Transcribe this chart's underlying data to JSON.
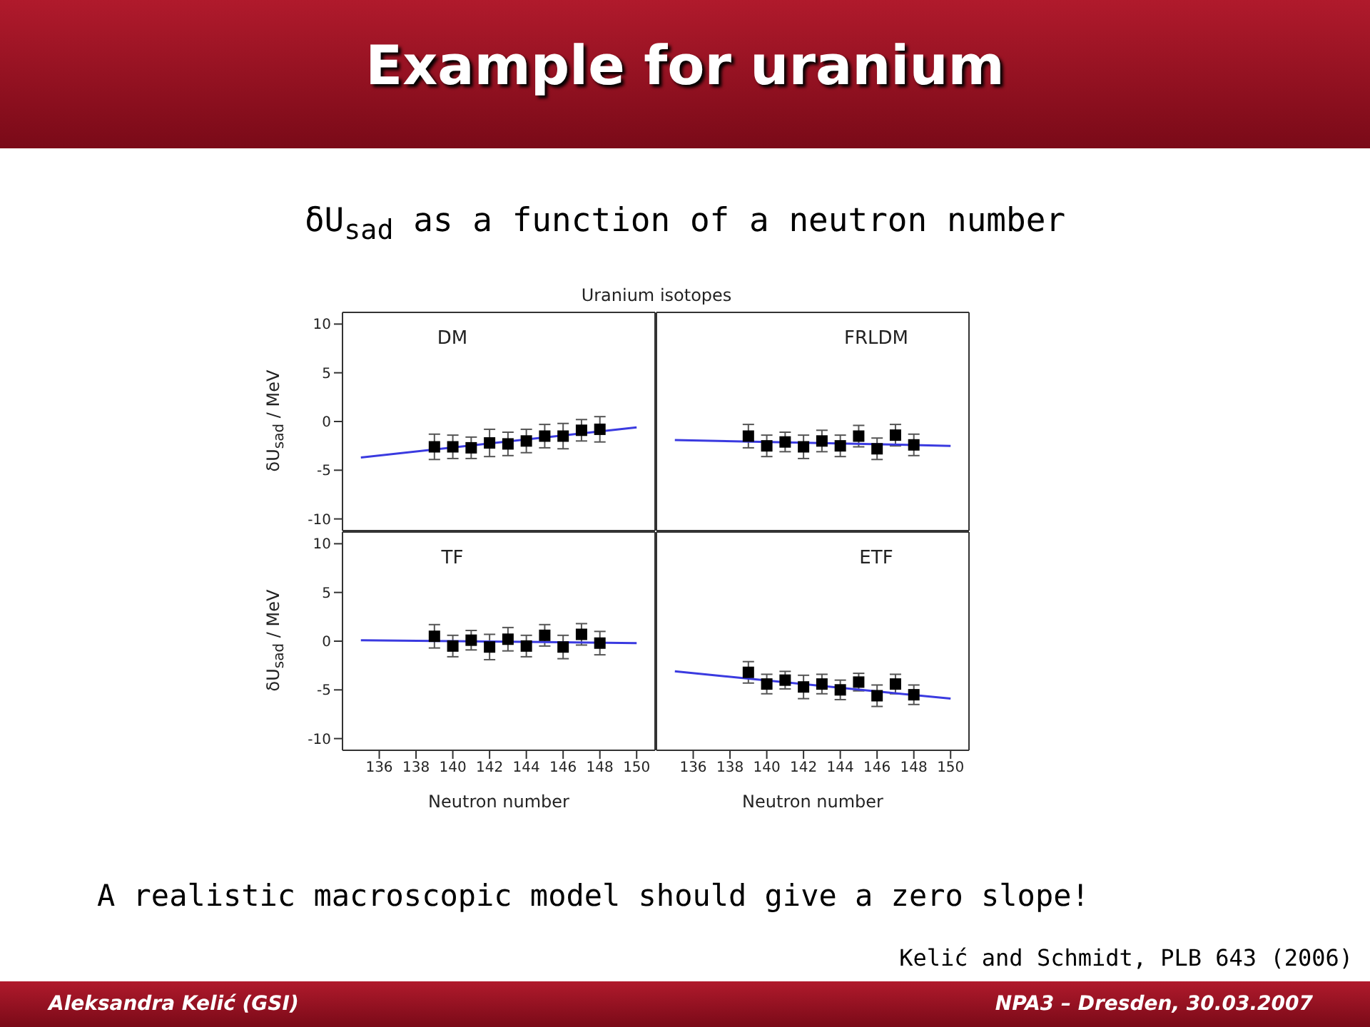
{
  "chart_data": [
    {
      "type": "scatter",
      "title": "Example for uranium",
      "subtitle": "δU$_{sad}$ as a function of a neutron number",
      "ylabel": "δU$_{sad}$ / MeV",
      "annotations": [
        "DM",
        "Uranium isotopes",
        "A realistic macroscopic model should give a zero slope!",
        "Kelić and Schmidt, PLB 643 (2006)",
        "Aleksandra Kelić (GSI)",
        "NPA3 – Dresden, 30.03.2007"
      ],
      "xlim": [
        134,
        151
      ],
      "xticks": [
        136,
        138,
        140,
        142,
        144,
        146,
        148,
        150
      ],
      "ylim": [
        -11.2,
        11.2
      ],
      "yticks": [
        -10,
        -5,
        0,
        5,
        10
      ],
      "tick_labels": "y",
      "series": [
        {
          "type": "scatter",
          "color": "#000000",
          "marker": "square",
          "x": [
            139,
            140,
            141,
            142,
            143,
            144,
            145,
            146,
            147,
            148
          ],
          "values": [
            -2.6,
            -2.6,
            -2.7,
            -2.2,
            -2.3,
            -2.0,
            -1.5,
            -1.5,
            -0.9,
            -0.8
          ],
          "errors": [
            1.3,
            1.2,
            1.1,
            1.4,
            1.2,
            1.2,
            1.2,
            1.3,
            1.1,
            1.3
          ]
        },
        {
          "type": "line",
          "color": "#3a3ae0",
          "marker": "none",
          "x": [
            135,
            150
          ],
          "values": [
            -3.7,
            -0.6
          ]
        }
      ]
    },
    {
      "type": "scatter",
      "annotations": [
        "FRLDM"
      ],
      "xlim": [
        134,
        151
      ],
      "xticks": [
        136,
        138,
        140,
        142,
        144,
        146,
        148,
        150
      ],
      "ylim": [
        -11.2,
        11.2
      ],
      "yticks": [
        -10,
        -5,
        0,
        5,
        10
      ],
      "tick_labels": false,
      "series": [
        {
          "type": "scatter",
          "color": "#000000",
          "marker": "square",
          "x": [
            139,
            140,
            141,
            142,
            143,
            144,
            145,
            146,
            147,
            148
          ],
          "values": [
            -1.5,
            -2.5,
            -2.1,
            -2.6,
            -2.0,
            -2.5,
            -1.5,
            -2.8,
            -1.4,
            -2.4
          ],
          "errors": [
            1.2,
            1.1,
            1.0,
            1.2,
            1.1,
            1.1,
            1.1,
            1.1,
            1.1,
            1.1
          ]
        },
        {
          "type": "line",
          "color": "#3a3ae0",
          "marker": "none",
          "x": [
            135,
            150
          ],
          "values": [
            -1.9,
            -2.5
          ]
        }
      ]
    },
    {
      "type": "scatter",
      "xlabel": "Neutron number",
      "ylabel": "δU$_{sad}$ / MeV",
      "annotations": [
        "TF"
      ],
      "xlim": [
        134,
        151
      ],
      "xticks": [
        136,
        138,
        140,
        142,
        144,
        146,
        148,
        150
      ],
      "ylim": [
        -11.2,
        11.2
      ],
      "yticks": [
        -10,
        -5,
        0,
        5,
        10
      ],
      "series": [
        {
          "type": "scatter",
          "color": "#000000",
          "marker": "square",
          "x": [
            139,
            140,
            141,
            142,
            143,
            144,
            145,
            146,
            147,
            148
          ],
          "values": [
            0.5,
            -0.5,
            0.1,
            -0.6,
            0.2,
            -0.5,
            0.6,
            -0.6,
            0.7,
            -0.2
          ],
          "errors": [
            1.2,
            1.1,
            1.0,
            1.3,
            1.2,
            1.1,
            1.1,
            1.2,
            1.1,
            1.2
          ]
        },
        {
          "type": "line",
          "color": "#3a3ae0",
          "marker": "none",
          "x": [
            135,
            150
          ],
          "values": [
            0.1,
            -0.2
          ]
        }
      ]
    },
    {
      "type": "scatter",
      "xlabel": "Neutron number",
      "annotations": [
        "ETF"
      ],
      "xlim": [
        134,
        151
      ],
      "xticks": [
        136,
        138,
        140,
        142,
        144,
        146,
        148,
        150
      ],
      "ylim": [
        -11.2,
        11.2
      ],
      "yticks": [
        -10,
        -5,
        0,
        5,
        10
      ],
      "tick_labels": "x",
      "series": [
        {
          "type": "scatter",
          "color": "#000000",
          "marker": "square",
          "x": [
            139,
            140,
            141,
            142,
            143,
            144,
            145,
            146,
            147,
            148
          ],
          "values": [
            -3.2,
            -4.4,
            -4.0,
            -4.7,
            -4.4,
            -5.0,
            -4.2,
            -5.6,
            -4.4,
            -5.5
          ],
          "errors": [
            1.1,
            1.0,
            0.9,
            1.2,
            1.0,
            1.0,
            0.9,
            1.1,
            1.0,
            1.0
          ]
        },
        {
          "type": "line",
          "color": "#3a3ae0",
          "marker": "none",
          "x": [
            135,
            150
          ],
          "values": [
            -3.1,
            -5.9
          ]
        }
      ]
    }
  ]
}
